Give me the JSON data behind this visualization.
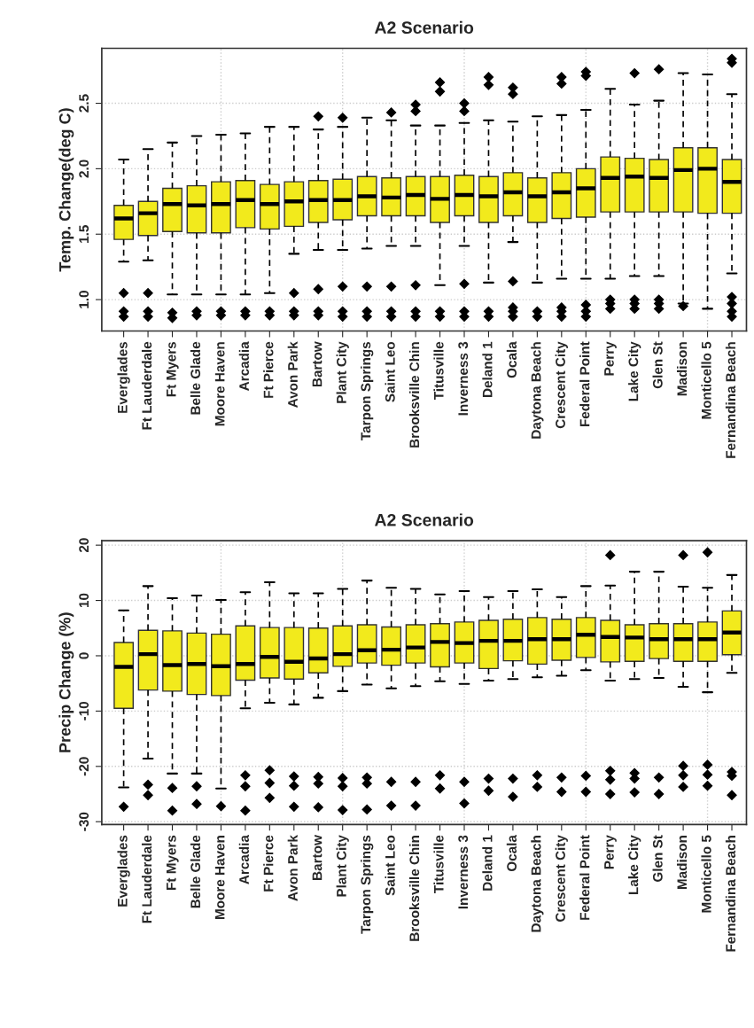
{
  "chart_data": [
    {
      "type": "box",
      "title": "A2 Scenario",
      "ylabel": "Temp. Change(deg C)",
      "categories": [
        "Everglades",
        "Ft Lauderdale",
        "Ft Myers",
        "Belle Glade",
        "Moore Haven",
        "Arcadia",
        "Ft Pierce",
        "Avon Park",
        "Bartow",
        "Plant City",
        "Tarpon Springs",
        "Saint Leo",
        "Brooksville Chin",
        "Titusville",
        "Inverness 3",
        "Deland 1",
        "Ocala",
        "Daytona Beach",
        "Crescent City",
        "Federal Point",
        "Perry",
        "Lake City",
        "Glen St",
        "Madison",
        "Monticello 5",
        "Fernandina Beach"
      ],
      "series": [
        {
          "color": "#f2ea1c",
          "boxes": [
            {
              "low": 1.29,
              "q1": 1.46,
              "median": 1.62,
              "q3": 1.72,
              "high": 2.07,
              "outliers": [
                1.05,
                0.91,
                0.87
              ]
            },
            {
              "low": 1.3,
              "q1": 1.49,
              "median": 1.66,
              "q3": 1.75,
              "high": 2.15,
              "outliers": [
                1.05,
                0.91,
                0.87
              ]
            },
            {
              "low": 1.04,
              "q1": 1.52,
              "median": 1.73,
              "q3": 1.85,
              "high": 2.2,
              "outliers": [
                0.9,
                0.86
              ]
            },
            {
              "low": 1.04,
              "q1": 1.51,
              "median": 1.72,
              "q3": 1.87,
              "high": 2.25,
              "outliers": [
                0.91,
                0.88
              ]
            },
            {
              "low": 1.04,
              "q1": 1.51,
              "median": 1.73,
              "q3": 1.9,
              "high": 2.26,
              "outliers": [
                0.91,
                0.88
              ]
            },
            {
              "low": 1.04,
              "q1": 1.55,
              "median": 1.76,
              "q3": 1.91,
              "high": 2.27,
              "outliers": [
                0.91,
                0.88
              ]
            },
            {
              "low": 1.05,
              "q1": 1.54,
              "median": 1.73,
              "q3": 1.88,
              "high": 2.32,
              "outliers": [
                0.91,
                0.88
              ]
            },
            {
              "low": 1.35,
              "q1": 1.56,
              "median": 1.75,
              "q3": 1.9,
              "high": 2.32,
              "outliers": [
                1.05,
                0.91,
                0.88
              ]
            },
            {
              "low": 1.38,
              "q1": 1.59,
              "median": 1.76,
              "q3": 1.91,
              "high": 2.3,
              "outliers": [
                2.4,
                1.08,
                0.91,
                0.88
              ]
            },
            {
              "low": 1.38,
              "q1": 1.61,
              "median": 1.76,
              "q3": 1.92,
              "high": 2.32,
              "outliers": [
                2.39,
                1.1,
                0.91,
                0.87
              ]
            },
            {
              "low": 1.39,
              "q1": 1.64,
              "median": 1.79,
              "q3": 1.94,
              "high": 2.39,
              "outliers": [
                1.1,
                0.91,
                0.87
              ]
            },
            {
              "low": 1.41,
              "q1": 1.64,
              "median": 1.78,
              "q3": 1.93,
              "high": 2.37,
              "outliers": [
                2.43,
                1.1,
                0.91,
                0.87
              ]
            },
            {
              "low": 1.41,
              "q1": 1.64,
              "median": 1.8,
              "q3": 1.94,
              "high": 2.33,
              "outliers": [
                2.49,
                2.44,
                1.11,
                0.91,
                0.87
              ]
            },
            {
              "low": 1.11,
              "q1": 1.59,
              "median": 1.77,
              "q3": 1.94,
              "high": 2.33,
              "outliers": [
                2.66,
                2.59,
                0.91,
                0.87
              ]
            },
            {
              "low": 1.41,
              "q1": 1.64,
              "median": 1.8,
              "q3": 1.95,
              "high": 2.35,
              "outliers": [
                2.5,
                2.44,
                1.12,
                0.91,
                0.87
              ]
            },
            {
              "low": 1.13,
              "q1": 1.59,
              "median": 1.79,
              "q3": 1.94,
              "high": 2.37,
              "outliers": [
                2.7,
                2.64,
                0.91,
                0.87
              ]
            },
            {
              "low": 1.44,
              "q1": 1.64,
              "median": 1.82,
              "q3": 1.97,
              "high": 2.36,
              "outliers": [
                2.62,
                2.57,
                1.14,
                0.94,
                0.91,
                0.87
              ]
            },
            {
              "low": 1.13,
              "q1": 1.59,
              "median": 1.79,
              "q3": 1.93,
              "high": 2.4,
              "outliers": [
                0.91,
                0.87
              ]
            },
            {
              "low": 1.16,
              "q1": 1.62,
              "median": 1.82,
              "q3": 1.97,
              "high": 2.41,
              "outliers": [
                2.7,
                2.65,
                0.94,
                0.91,
                0.87
              ]
            },
            {
              "low": 1.16,
              "q1": 1.63,
              "median": 1.85,
              "q3": 2.0,
              "high": 2.45,
              "outliers": [
                2.74,
                2.71,
                0.96,
                0.91,
                0.87
              ]
            },
            {
              "low": 1.16,
              "q1": 1.67,
              "median": 1.93,
              "q3": 2.09,
              "high": 2.61,
              "outliers": [
                1.0,
                0.97,
                0.93
              ]
            },
            {
              "low": 1.18,
              "q1": 1.67,
              "median": 1.94,
              "q3": 2.08,
              "high": 2.49,
              "outliers": [
                2.73,
                1.0,
                0.97,
                0.93
              ]
            },
            {
              "low": 1.18,
              "q1": 1.67,
              "median": 1.93,
              "q3": 2.07,
              "high": 2.52,
              "outliers": [
                2.76,
                1.0,
                0.97,
                0.93
              ]
            },
            {
              "low": 0.97,
              "q1": 1.67,
              "median": 1.99,
              "q3": 2.16,
              "high": 2.73,
              "outliers": [
                0.95
              ]
            },
            {
              "low": 0.93,
              "q1": 1.66,
              "median": 2.0,
              "q3": 2.16,
              "high": 2.72
            },
            {
              "low": 1.2,
              "q1": 1.66,
              "median": 1.9,
              "q3": 2.07,
              "high": 2.57,
              "outliers": [
                2.84,
                2.81,
                1.02,
                0.97,
                0.91,
                0.87
              ]
            }
          ]
        }
      ],
      "ylim": [
        0.76,
        2.92
      ],
      "yticks": [
        {
          "value": 1.0,
          "label": "1.0"
        },
        {
          "value": 1.5,
          "label": "1.5"
        },
        {
          "value": 2.0,
          "label": "2.0"
        },
        {
          "value": 2.5,
          "label": "2.5"
        }
      ],
      "grid": true
    },
    {
      "type": "box",
      "title": "A2 Scenario",
      "ylabel": "Precip Change (%)",
      "categories": [
        "Everglades",
        "Ft Lauderdale",
        "Ft Myers",
        "Belle Glade",
        "Moore Haven",
        "Arcadia",
        "Ft Pierce",
        "Avon Park",
        "Bartow",
        "Plant City",
        "Tarpon Springs",
        "Saint Leo",
        "Brooksville Chin",
        "Titusville",
        "Inverness 3",
        "Deland 1",
        "Ocala",
        "Daytona Beach",
        "Crescent City",
        "Federal Point",
        "Perry",
        "Lake City",
        "Glen St",
        "Madison",
        "Monticello 5",
        "Fernandina Beach"
      ],
      "series": [
        {
          "color": "#f2ea1c",
          "boxes": [
            {
              "low": -23.8,
              "q1": -9.5,
              "median": -2.0,
              "q3": 2.4,
              "high": 8.2,
              "outliers": [
                -27.3
              ]
            },
            {
              "low": -18.6,
              "q1": -6.2,
              "median": 0.3,
              "q3": 4.6,
              "high": 12.6,
              "outliers": [
                -23.3,
                -25.2
              ]
            },
            {
              "low": -21.3,
              "q1": -6.4,
              "median": -1.7,
              "q3": 4.5,
              "high": 10.4,
              "outliers": [
                -23.9,
                -28.0
              ]
            },
            {
              "low": -21.3,
              "q1": -7.0,
              "median": -1.5,
              "q3": 4.1,
              "high": 10.9,
              "outliers": [
                -23.6,
                -26.8
              ]
            },
            {
              "low": -24.0,
              "q1": -7.2,
              "median": -1.9,
              "q3": 3.9,
              "high": 10.1,
              "outliers": [
                -27.2
              ]
            },
            {
              "low": -9.5,
              "q1": -4.4,
              "median": -1.5,
              "q3": 5.4,
              "high": 11.5,
              "outliers": [
                -21.6,
                -23.6,
                -28.0
              ]
            },
            {
              "low": -8.5,
              "q1": -4.0,
              "median": -0.2,
              "q3": 5.1,
              "high": 13.3,
              "outliers": [
                -20.7,
                -23.0,
                -25.7
              ]
            },
            {
              "low": -8.8,
              "q1": -4.2,
              "median": -1.1,
              "q3": 5.1,
              "high": 11.3,
              "outliers": [
                -21.8,
                -23.5,
                -27.3
              ]
            },
            {
              "low": -7.6,
              "q1": -3.1,
              "median": -0.5,
              "q3": 5.0,
              "high": 11.3,
              "outliers": [
                -21.9,
                -23.1,
                -27.4
              ]
            },
            {
              "low": -6.4,
              "q1": -1.9,
              "median": 0.3,
              "q3": 5.4,
              "high": 12.1,
              "outliers": [
                -22.1,
                -23.6,
                -27.9
              ]
            },
            {
              "low": -5.2,
              "q1": -1.3,
              "median": 1.0,
              "q3": 5.6,
              "high": 13.6,
              "outliers": [
                -22.0,
                -23.1,
                -27.8
              ]
            },
            {
              "low": -5.9,
              "q1": -1.7,
              "median": 1.1,
              "q3": 5.2,
              "high": 12.3,
              "outliers": [
                -22.8,
                -27.1
              ]
            },
            {
              "low": -5.5,
              "q1": -1.3,
              "median": 1.5,
              "q3": 5.6,
              "high": 12.1,
              "outliers": [
                -22.8,
                -27.1
              ]
            },
            {
              "low": -4.6,
              "q1": -2.0,
              "median": 2.5,
              "q3": 5.8,
              "high": 11.1,
              "outliers": [
                -21.6,
                -24.0
              ]
            },
            {
              "low": -5.1,
              "q1": -1.3,
              "median": 2.3,
              "q3": 6.1,
              "high": 11.7,
              "outliers": [
                -22.8,
                -26.7
              ]
            },
            {
              "low": -4.5,
              "q1": -2.3,
              "median": 2.7,
              "q3": 6.4,
              "high": 10.6,
              "outliers": [
                -22.2,
                -24.4
              ]
            },
            {
              "low": -4.2,
              "q1": -0.9,
              "median": 2.7,
              "q3": 6.6,
              "high": 11.7,
              "outliers": [
                -22.2,
                -25.5
              ]
            },
            {
              "low": -3.9,
              "q1": -1.5,
              "median": 3.0,
              "q3": 6.9,
              "high": 12.0,
              "outliers": [
                -21.6,
                -23.7
              ]
            },
            {
              "low": -3.6,
              "q1": -0.8,
              "median": 3.0,
              "q3": 6.6,
              "high": 10.6,
              "outliers": [
                -22.0,
                -24.6
              ]
            },
            {
              "low": -2.6,
              "q1": -0.3,
              "median": 3.8,
              "q3": 6.9,
              "high": 12.6,
              "outliers": [
                -21.7,
                -24.6
              ]
            },
            {
              "low": -4.5,
              "q1": -1.1,
              "median": 3.4,
              "q3": 6.4,
              "high": 12.7,
              "outliers": [
                18.2,
                -20.8,
                -22.4,
                -25.0
              ]
            },
            {
              "low": -4.2,
              "q1": -1.0,
              "median": 3.3,
              "q3": 5.6,
              "high": 15.2,
              "outliers": [
                -21.2,
                -22.2,
                -24.7
              ]
            },
            {
              "low": -4.0,
              "q1": -0.5,
              "median": 3.0,
              "q3": 5.8,
              "high": 15.2,
              "outliers": [
                -22.0,
                -25.0
              ]
            },
            {
              "low": -5.6,
              "q1": -1.0,
              "median": 3.0,
              "q3": 5.8,
              "high": 12.5,
              "outliers": [
                18.2,
                -19.9,
                -21.6,
                -23.7
              ]
            },
            {
              "low": -6.6,
              "q1": -1.0,
              "median": 3.0,
              "q3": 6.1,
              "high": 12.3,
              "outliers": [
                18.7,
                -19.7,
                -21.5,
                -23.5
              ]
            },
            {
              "low": -3.1,
              "q1": 0.2,
              "median": 4.2,
              "q3": 8.1,
              "high": 14.6,
              "outliers": [
                -21.0,
                -21.7,
                -25.2
              ]
            }
          ]
        }
      ],
      "ylim": [
        -30.5,
        20.8
      ],
      "yticks": [
        -30,
        -20,
        -10,
        0,
        10,
        20
      ],
      "grid": true
    }
  ]
}
